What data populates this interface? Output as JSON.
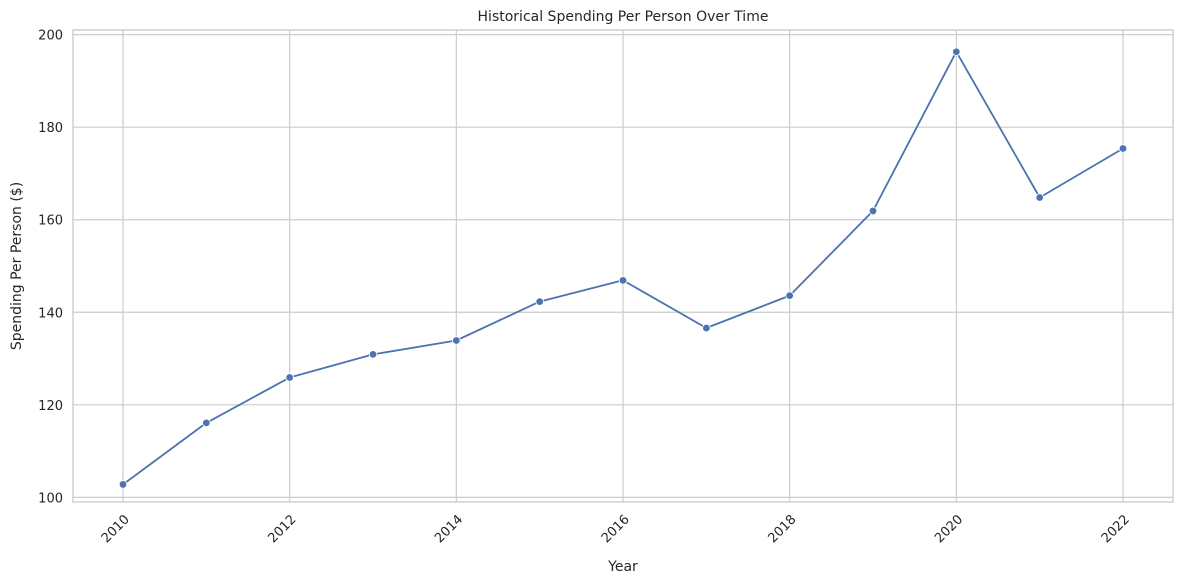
{
  "chart_data": {
    "type": "line",
    "title": "Historical Spending Per Person Over Time",
    "xlabel": "Year",
    "ylabel": "Spending Per Person ($)",
    "x": [
      2010,
      2011,
      2012,
      2013,
      2014,
      2015,
      2016,
      2017,
      2018,
      2019,
      2020,
      2021,
      2022
    ],
    "series": [
      {
        "values": [
          102.8,
          116.1,
          125.9,
          130.9,
          133.9,
          142.3,
          146.9,
          136.6,
          143.6,
          161.9,
          196.3,
          164.8,
          175.4
        ]
      }
    ],
    "xticks": [
      "2010",
      "2012",
      "2014",
      "2016",
      "2018",
      "2020",
      "2022"
    ],
    "yticks": [
      "100",
      "120",
      "140",
      "160",
      "180",
      "200"
    ],
    "xlim": [
      2009.4,
      2022.6
    ],
    "ylim": [
      99.0,
      201.0
    ],
    "grid": true,
    "line_color": "#4c72b0",
    "marker": "circle",
    "xtick_rotation": "45 degrees"
  }
}
